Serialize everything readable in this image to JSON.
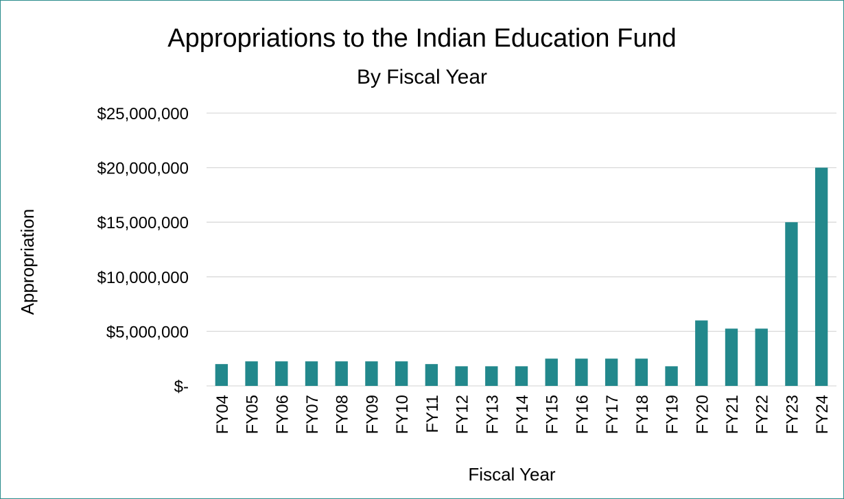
{
  "chart_data": {
    "type": "bar",
    "title": "Appropriations to the Indian Education Fund",
    "subtitle": "By Fiscal Year",
    "xlabel": "Fiscal Year",
    "ylabel": "Appropriation",
    "categories": [
      "FY04",
      "FY05",
      "FY06",
      "FY07",
      "FY08",
      "FY09",
      "FY10",
      "FY11",
      "FY12",
      "FY13",
      "FY14",
      "FY15",
      "FY16",
      "FY17",
      "FY18",
      "FY19",
      "FY20",
      "FY21",
      "FY22",
      "FY23",
      "FY24"
    ],
    "values": [
      2000000,
      2250000,
      2250000,
      2250000,
      2250000,
      2250000,
      2250000,
      2000000,
      1800000,
      1800000,
      1800000,
      2500000,
      2500000,
      2500000,
      2500000,
      1800000,
      6000000,
      5250000,
      5250000,
      15000000,
      20000000
    ],
    "ylim": [
      0,
      25000000
    ],
    "y_ticks": [
      0,
      5000000,
      10000000,
      15000000,
      20000000,
      25000000
    ],
    "y_tick_labels": [
      "$-",
      "$5,000,000",
      "$10,000,000",
      "$15,000,000",
      "$20,000,000",
      "$25,000,000"
    ],
    "grid": true,
    "legend": "none",
    "bar_color": "#22888c",
    "frame_color": "#2a8b8c"
  }
}
